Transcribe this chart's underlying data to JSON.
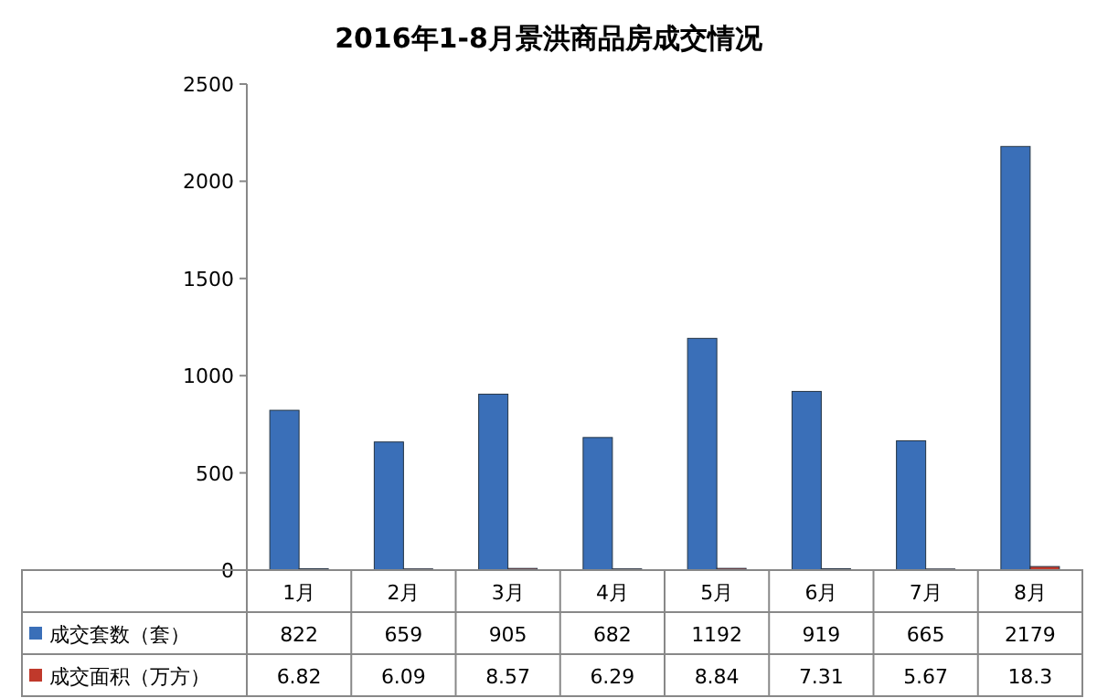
{
  "chart_data": {
    "type": "bar",
    "title": "2016年1-8月景洪商品房成交情况",
    "categories": [
      "1月",
      "2月",
      "3月",
      "4月",
      "5月",
      "6月",
      "7月",
      "8月"
    ],
    "series": [
      {
        "name": "成交套数（套）",
        "color": "#3a6fb8",
        "values": [
          822,
          659,
          905,
          682,
          1192,
          919,
          665,
          2179
        ]
      },
      {
        "name": "成交面积（万方）",
        "color": "#c0392b",
        "values": [
          6.82,
          6.09,
          8.57,
          6.29,
          8.84,
          7.31,
          5.67,
          18.3
        ]
      }
    ],
    "ylim": [
      0,
      2500
    ],
    "yticks": [
      0,
      500,
      1000,
      1500,
      2000,
      2500
    ],
    "data_labels": true,
    "legend": "bottom"
  }
}
